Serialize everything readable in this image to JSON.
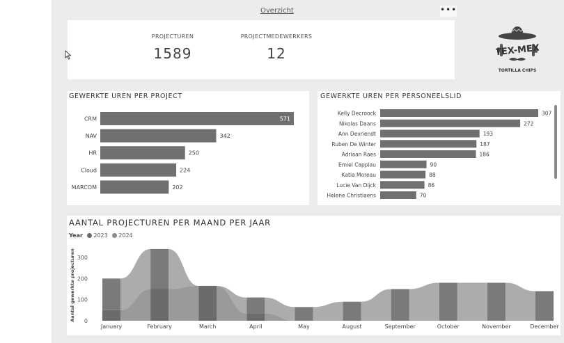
{
  "page": {
    "tab_title": "Overzicht",
    "more_label": "•••"
  },
  "kpis": [
    {
      "label": "PROJECTUREN",
      "value": "1589"
    },
    {
      "label": "PROJECTMEDEWERKERS",
      "value": "12"
    }
  ],
  "logo": {
    "line1": "TEX-MEX",
    "line2": "TORTILLA CHIPS"
  },
  "colors": {
    "bar": "#707070",
    "series2023": "#6b6b6b",
    "series2024": "#9e9e9e"
  },
  "chart_data": [
    {
      "type": "bar",
      "orientation": "horizontal",
      "title": "GEWERKTE UREN PER PROJECT",
      "categories": [
        "CRM",
        "NAV",
        "HR",
        "Cloud",
        "MARCOM"
      ],
      "values": [
        571,
        342,
        250,
        224,
        202
      ]
    },
    {
      "type": "bar",
      "orientation": "horizontal",
      "title": "GEWERKTE UREN PER PERSONEELSLID",
      "categories": [
        "Kelly Decroock",
        "Nikolas Daans",
        "Ann Devriendt",
        "Ruben De Winter",
        "Adriaan Raes",
        "Emiel Cappiau",
        "Katia Moreau",
        "Lucie Van Dijck",
        "Helene Christiaens"
      ],
      "values": [
        307,
        272,
        193,
        187,
        186,
        90,
        88,
        86,
        70
      ]
    },
    {
      "type": "area",
      "subtype": "ribbon",
      "title": "AANTAL PROJECTUREN PER MAAND PER JAAR",
      "legend_title": "Year",
      "ylabel": "Aantal gewerkte projecturen",
      "ylim": [
        0,
        350
      ],
      "yticks": [
        0,
        100,
        200,
        300
      ],
      "categories": [
        "January",
        "February",
        "March",
        "April",
        "May",
        "August",
        "September",
        "October",
        "November",
        "December"
      ],
      "series": [
        {
          "name": "2023",
          "values": [
            50,
            150,
            165,
            35,
            0,
            0,
            0,
            0,
            0,
            0
          ]
        },
        {
          "name": "2024",
          "values": [
            150,
            190,
            0,
            75,
            65,
            90,
            150,
            180,
            180,
            140
          ]
        }
      ]
    }
  ]
}
